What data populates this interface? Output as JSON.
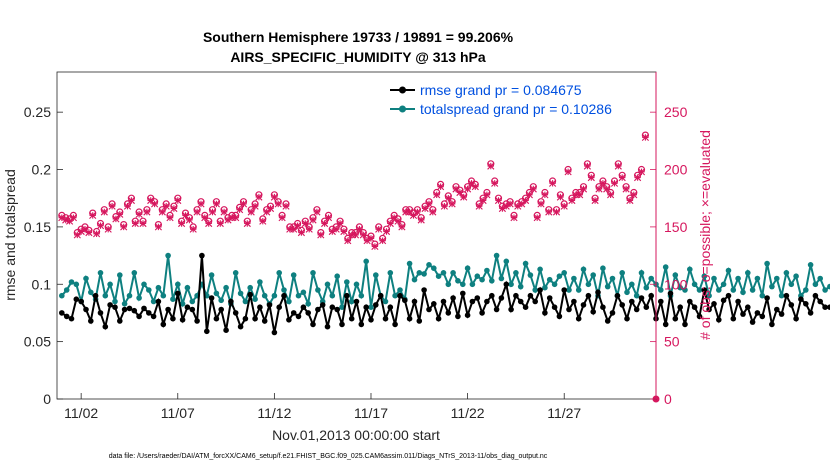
{
  "chart_data": {
    "type": "line",
    "title": "Southern Hemisphere 19733 / 19891 = 99.206%",
    "subtitle": "AIRS_SPECIFIC_HUMIDITY @ 313 hPa",
    "xlabel": "Nov.01,2013 00:00:00 start",
    "ylabel_left": "rmse and totalspread",
    "ylabel_right": "# of obs: o=possible; ×=evaluated",
    "xlim": [
      0.5,
      31.5
    ],
    "ylim_left": [
      0,
      0.285
    ],
    "ylim_right": [
      0,
      285
    ],
    "x_ticks": [
      1.75,
      6.75,
      11.75,
      16.75,
      21.75,
      26.75
    ],
    "x_tick_labels": [
      "11/02",
      "11/07",
      "11/12",
      "11/17",
      "11/22",
      "11/27"
    ],
    "y_ticks_left": [
      "0",
      "0.05",
      "0.1",
      "0.15",
      "0.2",
      "0.25"
    ],
    "y_ticks_left_values": [
      0,
      0.05,
      0.1,
      0.15,
      0.2,
      0.25
    ],
    "y_ticks_right": [
      "0",
      "50",
      "100",
      "150",
      "200",
      "250"
    ],
    "y_ticks_right_values": [
      0,
      50,
      100,
      150,
      200,
      250
    ],
    "legend": {
      "position": "top-right",
      "entries": [
        "rmse grand pr = 0.084675",
        "totalspread grand pr = 0.10286"
      ]
    },
    "footer": "data file: /Users/raeder/DAI/ATM_forcXX/CAM6_setup/f.e21.FHIST_BGC.f09_025.CAM6assim.011/Diags_NTrS_2013-11/obs_diag_output.nc",
    "colors": {
      "rmse": "#000000",
      "spread": "#0e8080",
      "obs": "#d6175e"
    },
    "series": [
      {
        "name": "rmse",
        "values": [
          0.075,
          0.072,
          0.07,
          0.087,
          0.085,
          0.078,
          0.068,
          0.09,
          0.075,
          0.063,
          0.082,
          0.08,
          0.068,
          0.078,
          0.079,
          0.077,
          0.072,
          0.079,
          0.075,
          0.072,
          0.085,
          0.065,
          0.078,
          0.07,
          0.092,
          0.069,
          0.08,
          0.078,
          0.068,
          0.125,
          0.059,
          0.088,
          0.07,
          0.078,
          0.06,
          0.085,
          0.075,
          0.063,
          0.07,
          0.091,
          0.07,
          0.08,
          0.068,
          0.082,
          0.058,
          0.08,
          0.09,
          0.069,
          0.075,
          0.072,
          0.08,
          0.075,
          0.065,
          0.078,
          0.082,
          0.063,
          0.08,
          0.078,
          0.065,
          0.09,
          0.07,
          0.085,
          0.065,
          0.08,
          0.069,
          0.082,
          0.09,
          0.07,
          0.08,
          0.065,
          0.09,
          0.086,
          0.07,
          0.085,
          0.068,
          0.095,
          0.078,
          0.083,
          0.07,
          0.085,
          0.075,
          0.088,
          0.072,
          0.092,
          0.073,
          0.085,
          0.088,
          0.075,
          0.085,
          0.09,
          0.078,
          0.088,
          0.1,
          0.078,
          0.09,
          0.085,
          0.08,
          0.09,
          0.085,
          0.095,
          0.075,
          0.088,
          0.08,
          0.072,
          0.095,
          0.078,
          0.085,
          0.07,
          0.082,
          0.09,
          0.076,
          0.093,
          0.08,
          0.068,
          0.075,
          0.09,
          0.082,
          0.07,
          0.085,
          0.078,
          0.088,
          0.08,
          0.09,
          0.07,
          0.085,
          0.065,
          0.092,
          0.07,
          0.08,
          0.065,
          0.085,
          0.08,
          0.072,
          0.095,
          0.078,
          0.083,
          0.069,
          0.086,
          0.09,
          0.07,
          0.085,
          0.074,
          0.08,
          0.067,
          0.075,
          0.072,
          0.088,
          0.065,
          0.078,
          0.074,
          0.09,
          0.082,
          0.07,
          0.087,
          0.083,
          0.075,
          0.09,
          0.085,
          0.08,
          0.08,
          0.078,
          0.088
        ]
      },
      {
        "name": "totalspread",
        "values": [
          0.09,
          0.095,
          0.102,
          0.1,
          0.085,
          0.105,
          0.093,
          0.087,
          0.11,
          0.09,
          0.1,
          0.085,
          0.108,
          0.083,
          0.09,
          0.11,
          0.088,
          0.1,
          0.095,
          0.085,
          0.097,
          0.09,
          0.125,
          0.087,
          0.1,
          0.083,
          0.097,
          0.085,
          0.09,
          0.1,
          0.09,
          0.108,
          0.092,
          0.086,
          0.097,
          0.083,
          0.11,
          0.092,
          0.085,
          0.097,
          0.087,
          0.102,
          0.09,
          0.083,
          0.09,
          0.11,
          0.095,
          0.085,
          0.108,
          0.09,
          0.093,
          0.083,
          0.11,
          0.095,
          0.085,
          0.1,
          0.09,
          0.107,
          0.08,
          0.102,
          0.085,
          0.1,
          0.09,
          0.12,
          0.08,
          0.108,
          0.09,
          0.085,
          0.11,
          0.09,
          0.095,
          0.087,
          0.118,
          0.104,
          0.11,
          0.109,
          0.117,
          0.114,
          0.107,
          0.11,
          0.1,
          0.11,
          0.103,
          0.1,
          0.114,
          0.1,
          0.107,
          0.104,
          0.112,
          0.103,
          0.125,
          0.105,
          0.12,
          0.1,
          0.11,
          0.098,
          0.118,
          0.108,
          0.095,
          0.113,
          0.097,
          0.104,
          0.1,
          0.107,
          0.11,
          0.095,
          0.105,
          0.095,
          0.113,
          0.1,
          0.108,
          0.09,
          0.114,
          0.098,
          0.105,
          0.09,
          0.11,
          0.093,
          0.1,
          0.09,
          0.11,
          0.097,
          0.105,
          0.1,
          0.095,
          0.115,
          0.09,
          0.108,
          0.097,
          0.095,
          0.113,
          0.1,
          0.095,
          0.107,
          0.09,
          0.105,
          0.095,
          0.1,
          0.112,
          0.095,
          0.105,
          0.093,
          0.11,
          0.095,
          0.105,
          0.09,
          0.118,
          0.098,
          0.105,
          0.09,
          0.11,
          0.1,
          0.107,
          0.09,
          0.095,
          0.117,
          0.1,
          0.105,
          0.095,
          0.098
        ]
      },
      {
        "name": "obs_possible",
        "values": [
          160,
          158,
          157,
          160,
          145,
          148,
          150,
          147,
          162,
          146,
          153,
          165,
          150,
          170,
          159,
          163,
          152,
          170,
          175,
          155,
          163,
          155,
          165,
          175,
          172,
          152,
          165,
          170,
          160,
          168,
          175,
          155,
          162,
          158,
          150,
          165,
          172,
          160,
          155,
          165,
          172,
          155,
          165,
          158,
          160,
          160,
          167,
          172,
          155,
          165,
          170,
          178,
          157,
          165,
          168,
          178,
          172,
          160,
          170,
          150,
          150,
          153,
          147,
          155,
          150,
          158,
          165,
          145,
          155,
          160,
          148,
          150,
          155,
          148,
          140,
          145,
          145,
          150,
          145,
          140,
          142,
          135,
          150,
          140,
          148,
          155,
          160,
          157,
          152,
          165,
          165,
          162,
          165,
          158,
          168,
          172,
          165,
          180,
          187,
          170,
          177,
          172,
          185,
          182,
          178,
          185,
          190,
          187,
          170,
          175,
          180,
          205,
          190,
          175,
          168,
          170,
          172,
          160,
          170,
          172,
          175,
          180,
          185,
          160,
          172,
          180,
          165,
          190,
          165,
          178,
          170,
          200,
          175,
          180,
          180,
          185,
          205,
          195,
          175,
          185,
          190,
          185,
          180,
          190,
          205,
          195,
          185,
          175,
          180,
          195,
          200,
          230
        ]
      },
      {
        "name": "obs_evaluated",
        "values": [
          158,
          156,
          155,
          158,
          143,
          146,
          148,
          145,
          160,
          144,
          151,
          163,
          148,
          168,
          157,
          161,
          150,
          168,
          173,
          153,
          161,
          153,
          163,
          173,
          170,
          150,
          163,
          168,
          158,
          166,
          173,
          153,
          160,
          156,
          148,
          163,
          170,
          158,
          153,
          163,
          170,
          153,
          163,
          156,
          158,
          158,
          165,
          170,
          153,
          163,
          168,
          176,
          155,
          163,
          166,
          176,
          170,
          158,
          168,
          148,
          148,
          151,
          145,
          153,
          148,
          156,
          163,
          143,
          153,
          158,
          146,
          148,
          153,
          146,
          138,
          143,
          143,
          148,
          143,
          138,
          140,
          133,
          148,
          138,
          146,
          153,
          158,
          155,
          150,
          163,
          163,
          160,
          163,
          156,
          166,
          170,
          163,
          178,
          185,
          168,
          175,
          170,
          183,
          180,
          176,
          183,
          188,
          185,
          168,
          173,
          178,
          203,
          188,
          173,
          166,
          168,
          170,
          158,
          168,
          170,
          173,
          178,
          183,
          158,
          170,
          178,
          163,
          188,
          163,
          176,
          168,
          198,
          173,
          178,
          178,
          183,
          203,
          193,
          173,
          183,
          188,
          183,
          178,
          188,
          203,
          193,
          183,
          173,
          178,
          193,
          198,
          228
        ]
      }
    ]
  }
}
